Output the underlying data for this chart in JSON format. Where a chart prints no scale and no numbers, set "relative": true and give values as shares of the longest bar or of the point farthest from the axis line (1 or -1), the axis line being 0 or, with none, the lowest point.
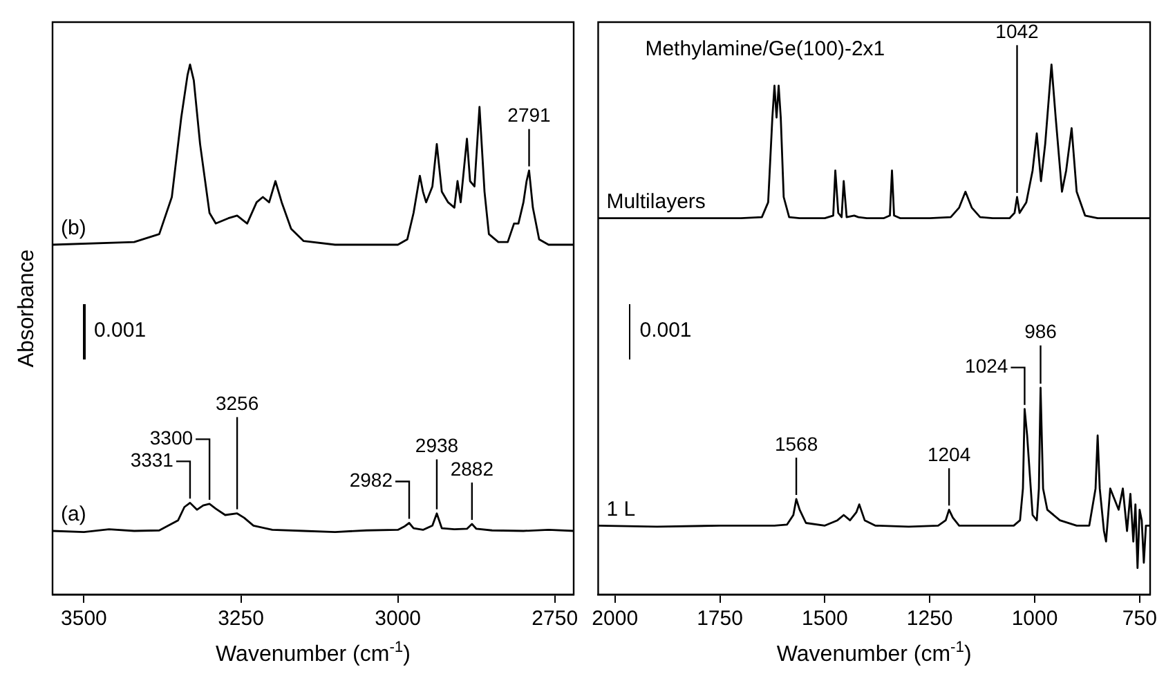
{
  "chart_data": [
    {
      "type": "line",
      "relative": true,
      "ylabel": "Absorbance",
      "xlabel": "Wavenumber (cm$^{-1}$)",
      "xlim": [
        3550,
        2720
      ],
      "xticks": [
        3500,
        3250,
        3000,
        2750
      ],
      "grid": false,
      "legend": false,
      "annotations": [
        "0.001",
        {
          "text": "3331",
          "x": 3331,
          "y": 0.173
        },
        {
          "text": "3300",
          "x": 3300,
          "y": 0.171
        },
        {
          "text": "3256",
          "x": 3256,
          "y": 0.153
        },
        {
          "text": "2982",
          "x": 2982,
          "y": 0.135
        },
        {
          "text": "2938",
          "x": 2938,
          "y": 0.153
        },
        {
          "text": "2882",
          "x": 2882,
          "y": 0.133
        },
        {
          "text": "2791",
          "x": 2791,
          "y": 0.8
        }
      ],
      "series": [
        {
          "name": "(b)",
          "color": "#000000",
          "x": [
            3550,
            3420,
            3380,
            3360,
            3345,
            3335,
            3331,
            3325,
            3315,
            3300,
            3290,
            3270,
            3256,
            3240,
            3225,
            3215,
            3205,
            3195,
            3185,
            3170,
            3150,
            3100,
            3050,
            3000,
            2985,
            2975,
            2965,
            2960,
            2955,
            2945,
            2938,
            2930,
            2920,
            2910,
            2905,
            2900,
            2895,
            2890,
            2885,
            2878,
            2870,
            2862,
            2855,
            2840,
            2825,
            2815,
            2808,
            2800,
            2795,
            2791,
            2785,
            2775,
            2760,
            2720
          ],
          "values": [
            0.66,
            0.665,
            0.68,
            0.75,
            0.9,
            0.98,
            1.0,
            0.97,
            0.85,
            0.72,
            0.7,
            0.71,
            0.715,
            0.7,
            0.74,
            0.75,
            0.74,
            0.78,
            0.74,
            0.69,
            0.667,
            0.66,
            0.66,
            0.66,
            0.67,
            0.72,
            0.79,
            0.76,
            0.74,
            0.77,
            0.85,
            0.76,
            0.74,
            0.73,
            0.78,
            0.74,
            0.8,
            0.86,
            0.78,
            0.77,
            0.92,
            0.76,
            0.68,
            0.665,
            0.665,
            0.7,
            0.7,
            0.74,
            0.78,
            0.8,
            0.73,
            0.67,
            0.66,
            0.66
          ]
        },
        {
          "name": "(a)",
          "color": "#000000",
          "x": [
            3550,
            3500,
            3460,
            3420,
            3380,
            3350,
            3340,
            3331,
            3320,
            3310,
            3300,
            3290,
            3275,
            3256,
            3245,
            3230,
            3200,
            3150,
            3100,
            3050,
            3000,
            2990,
            2982,
            2975,
            2960,
            2945,
            2938,
            2930,
            2910,
            2890,
            2882,
            2875,
            2850,
            2800,
            2760,
            2720
          ],
          "values": [
            0.12,
            0.118,
            0.123,
            0.12,
            0.121,
            0.14,
            0.165,
            0.173,
            0.16,
            0.168,
            0.171,
            0.162,
            0.15,
            0.153,
            0.145,
            0.13,
            0.122,
            0.12,
            0.118,
            0.121,
            0.122,
            0.128,
            0.135,
            0.125,
            0.122,
            0.13,
            0.153,
            0.125,
            0.123,
            0.124,
            0.133,
            0.124,
            0.121,
            0.12,
            0.122,
            0.12
          ]
        }
      ]
    },
    {
      "type": "line",
      "relative": true,
      "xlabel": "Wavenumber (cm$^{-1}$)",
      "xlim": [
        2040,
        725
      ],
      "xticks": [
        2000,
        1750,
        1500,
        1250,
        1000,
        750
      ],
      "grid": false,
      "legend": false,
      "annotations": [
        "Methylamine/Ge(100)-2x1",
        "0.001",
        {
          "text": "1568",
          "x": 1568,
          "y": 0.18
        },
        {
          "text": "1204",
          "x": 1204,
          "y": 0.16
        },
        {
          "text": "1042",
          "x": 1042,
          "y": 0.75
        },
        {
          "text": "1024",
          "x": 1024,
          "y": 0.35
        },
        {
          "text": "986",
          "x": 986,
          "y": 0.39
        }
      ],
      "series": [
        {
          "name": "Multilayers",
          "color": "#000000",
          "x": [
            2040,
            1700,
            1650,
            1635,
            1625,
            1620,
            1615,
            1610,
            1605,
            1598,
            1585,
            1560,
            1500,
            1480,
            1475,
            1468,
            1460,
            1455,
            1448,
            1430,
            1420,
            1400,
            1360,
            1345,
            1340,
            1335,
            1320,
            1250,
            1200,
            1180,
            1165,
            1150,
            1130,
            1100,
            1060,
            1048,
            1042,
            1036,
            1020,
            1005,
            995,
            985,
            975,
            960,
            950,
            935,
            925,
            912,
            900,
            880,
            850,
            800,
            725
          ],
          "values": [
            0.71,
            0.71,
            0.712,
            0.74,
            0.9,
            0.96,
            0.9,
            0.96,
            0.9,
            0.75,
            0.712,
            0.71,
            0.71,
            0.715,
            0.8,
            0.72,
            0.712,
            0.78,
            0.712,
            0.715,
            0.712,
            0.71,
            0.71,
            0.715,
            0.8,
            0.715,
            0.71,
            0.71,
            0.712,
            0.73,
            0.76,
            0.73,
            0.712,
            0.71,
            0.71,
            0.72,
            0.75,
            0.72,
            0.74,
            0.8,
            0.87,
            0.78,
            0.85,
            1.0,
            0.9,
            0.76,
            0.8,
            0.88,
            0.76,
            0.715,
            0.71,
            0.71,
            0.71
          ]
        },
        {
          "name": "1 L",
          "color": "#000000",
          "x": [
            2040,
            1900,
            1750,
            1620,
            1590,
            1575,
            1568,
            1560,
            1545,
            1500,
            1470,
            1455,
            1440,
            1425,
            1418,
            1405,
            1380,
            1300,
            1230,
            1212,
            1204,
            1195,
            1180,
            1100,
            1050,
            1035,
            1028,
            1024,
            1018,
            1005,
            995,
            990,
            986,
            980,
            970,
            940,
            900,
            870,
            855,
            850,
            845,
            835,
            830,
            820,
            810,
            800,
            790,
            780,
            772,
            765,
            760,
            755,
            750,
            745,
            740,
            735,
            725
          ],
          "values": [
            0.13,
            0.128,
            0.13,
            0.13,
            0.132,
            0.15,
            0.18,
            0.16,
            0.135,
            0.13,
            0.14,
            0.15,
            0.14,
            0.155,
            0.17,
            0.14,
            0.13,
            0.128,
            0.13,
            0.14,
            0.16,
            0.145,
            0.13,
            0.13,
            0.13,
            0.14,
            0.2,
            0.35,
            0.3,
            0.15,
            0.14,
            0.2,
            0.39,
            0.2,
            0.16,
            0.14,
            0.13,
            0.13,
            0.2,
            0.3,
            0.2,
            0.12,
            0.1,
            0.2,
            0.18,
            0.16,
            0.2,
            0.12,
            0.19,
            0.1,
            0.17,
            0.05,
            0.16,
            0.14,
            0.06,
            0.13,
            0.13
          ]
        }
      ]
    }
  ]
}
